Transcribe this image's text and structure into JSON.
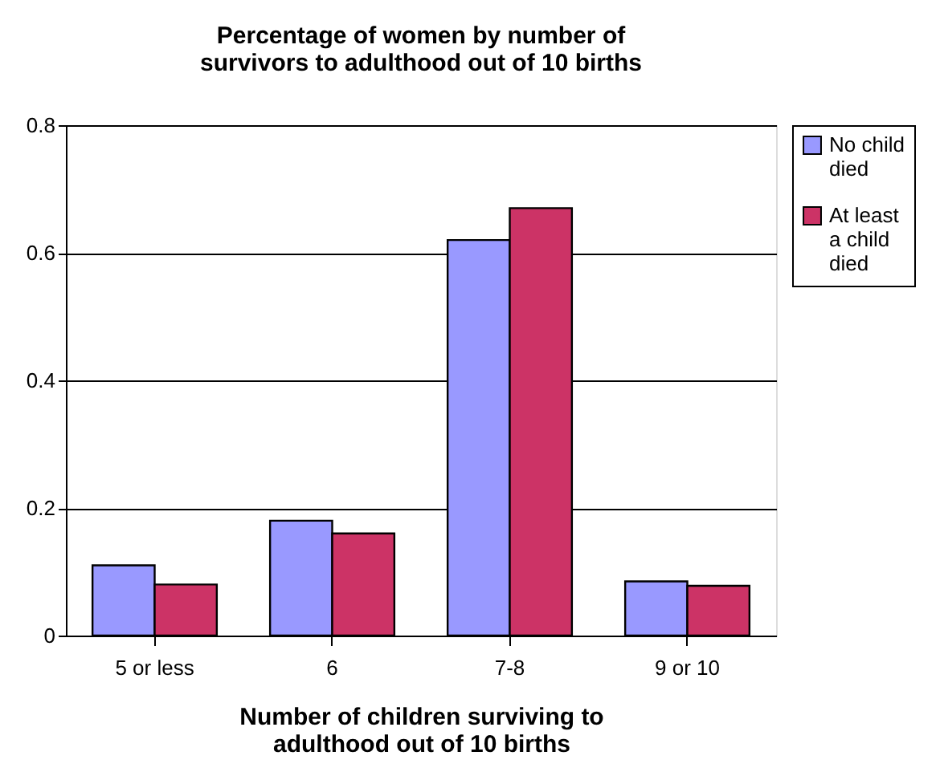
{
  "chart_data": {
    "type": "bar",
    "title": [
      "Percentage of women by number of",
      "survivors to adulthood out of 10 births"
    ],
    "xlabel": [
      "Number of children surviving to",
      "adulthood out of 10 births"
    ],
    "categories": [
      "5 or less",
      "6",
      "7-8",
      "9 or 10"
    ],
    "series": [
      {
        "name": "No child died",
        "color": "#9999ff",
        "values": [
          0.11,
          0.18,
          0.62,
          0.085
        ]
      },
      {
        "name": "At least a child died",
        "color": "#cc3366",
        "values": [
          0.08,
          0.16,
          0.67,
          0.078
        ]
      }
    ],
    "ylim": [
      0,
      0.8
    ],
    "yticks": [
      0,
      0.2,
      0.4,
      0.6,
      0.8
    ],
    "grid": "y",
    "legend": "right"
  }
}
